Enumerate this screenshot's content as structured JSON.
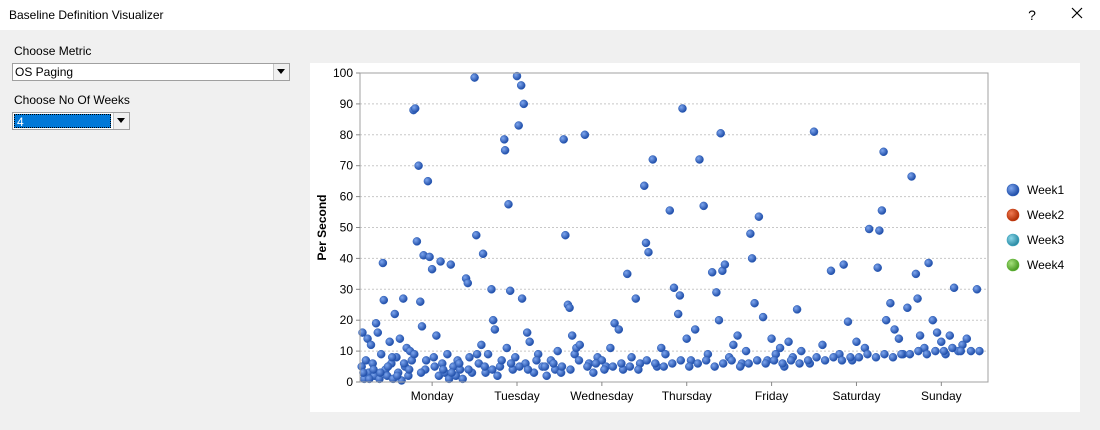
{
  "window": {
    "title": "Baseline Definition Visualizer",
    "help_glyph": "?",
    "close_glyph": "✕"
  },
  "form": {
    "metric_label": "Choose Metric",
    "metric_value": "OS Paging",
    "weeks_label": "Choose No Of Weeks",
    "weeks_value": "4"
  },
  "chart_data": {
    "type": "scatter",
    "ylabel": "Per Second",
    "ylim": [
      0,
      100
    ],
    "yticks": [
      0,
      10,
      20,
      30,
      40,
      50,
      60,
      70,
      80,
      90,
      100
    ],
    "x_unit": "day index (0 = start of Monday)",
    "xlim": [
      -0.85,
      6.55
    ],
    "xticks": [
      {
        "value": 0,
        "label": "Monday"
      },
      {
        "value": 1,
        "label": "Tuesday"
      },
      {
        "value": 2,
        "label": "Wednesday"
      },
      {
        "value": 3,
        "label": "Thursday"
      },
      {
        "value": 4,
        "label": "Friday"
      },
      {
        "value": 5,
        "label": "Saturday"
      },
      {
        "value": 6,
        "label": "Sunday"
      }
    ],
    "grid_y": true,
    "legend_position": "right",
    "series": [
      {
        "name": "Week1",
        "color": "#2e5fb8",
        "points": [
          [
            -0.83,
            5
          ],
          [
            -0.82,
            16
          ],
          [
            -0.8,
            1
          ],
          [
            -0.78,
            7
          ],
          [
            -0.76,
            14
          ],
          [
            -0.75,
            3
          ],
          [
            -0.72,
            12
          ],
          [
            -0.7,
            6
          ],
          [
            -0.68,
            2
          ],
          [
            -0.66,
            19
          ],
          [
            -0.64,
            16
          ],
          [
            -0.62,
            1
          ],
          [
            -0.6,
            9
          ],
          [
            -0.58,
            38.5
          ],
          [
            -0.57,
            26.5
          ],
          [
            -0.55,
            4
          ],
          [
            -0.53,
            2
          ],
          [
            -0.5,
            13
          ],
          [
            -0.48,
            6
          ],
          [
            -0.46,
            1
          ],
          [
            -0.44,
            22
          ],
          [
            -0.42,
            8
          ],
          [
            -0.4,
            3
          ],
          [
            -0.38,
            14
          ],
          [
            -0.36,
            0.5
          ],
          [
            -0.34,
            27
          ],
          [
            -0.32,
            5
          ],
          [
            -0.3,
            11
          ],
          [
            -0.28,
            2
          ],
          [
            -0.26,
            10
          ],
          [
            -0.24,
            7
          ],
          [
            -0.22,
            88
          ],
          [
            -0.2,
            88.5
          ],
          [
            -0.18,
            45.5
          ],
          [
            -0.16,
            70
          ],
          [
            -0.14,
            26
          ],
          [
            -0.12,
            18
          ],
          [
            -0.1,
            41
          ],
          [
            -0.08,
            4
          ],
          [
            -0.05,
            65
          ],
          [
            -0.03,
            40.5
          ],
          [
            0,
            36.5
          ],
          [
            0.02,
            8
          ],
          [
            0.05,
            15
          ],
          [
            0.08,
            2
          ],
          [
            0.1,
            39
          ],
          [
            0.12,
            6
          ],
          [
            0.15,
            3
          ],
          [
            0.18,
            9
          ],
          [
            0.2,
            1
          ],
          [
            0.22,
            38
          ],
          [
            0.25,
            5
          ],
          [
            0.28,
            2
          ],
          [
            0.3,
            7
          ],
          [
            0.33,
            4
          ],
          [
            0.36,
            1
          ],
          [
            0.4,
            33.5
          ],
          [
            0.42,
            32
          ],
          [
            0.44,
            8
          ],
          [
            0.47,
            3
          ],
          [
            0.5,
            98.5
          ],
          [
            0.52,
            47.5
          ],
          [
            0.55,
            6
          ],
          [
            0.58,
            12
          ],
          [
            0.6,
            41.5
          ],
          [
            0.63,
            3
          ],
          [
            0.66,
            9
          ],
          [
            0.7,
            30
          ],
          [
            0.72,
            20
          ],
          [
            0.74,
            17
          ],
          [
            0.77,
            2
          ],
          [
            0.8,
            5
          ],
          [
            0.85,
            78.5
          ],
          [
            0.86,
            75
          ],
          [
            0.88,
            11
          ],
          [
            0.9,
            57.5
          ],
          [
            0.92,
            29.5
          ],
          [
            0.95,
            4
          ],
          [
            0.98,
            8
          ],
          [
            1,
            99
          ],
          [
            1.02,
            83
          ],
          [
            1.05,
            96
          ],
          [
            1.08,
            90
          ],
          [
            1.06,
            27
          ],
          [
            1.1,
            6
          ],
          [
            1.12,
            16
          ],
          [
            1.15,
            13
          ],
          [
            1.2,
            3
          ],
          [
            1.25,
            9
          ],
          [
            1.3,
            5
          ],
          [
            1.35,
            2
          ],
          [
            1.4,
            7
          ],
          [
            1.45,
            4
          ],
          [
            1.48,
            10
          ],
          [
            1.52,
            3
          ],
          [
            1.55,
            78.5
          ],
          [
            1.57,
            47.5
          ],
          [
            1.6,
            25
          ],
          [
            1.62,
            24
          ],
          [
            1.65,
            15
          ],
          [
            1.68,
            9
          ],
          [
            1.7,
            11
          ],
          [
            1.74,
            12
          ],
          [
            1.8,
            80
          ],
          [
            1.85,
            6
          ],
          [
            1.9,
            3
          ],
          [
            1.95,
            8
          ],
          [
            2,
            7
          ],
          [
            2.05,
            5
          ],
          [
            2.1,
            11
          ],
          [
            2.15,
            19
          ],
          [
            2.2,
            17
          ],
          [
            2.25,
            4
          ],
          [
            2.3,
            35
          ],
          [
            2.35,
            8
          ],
          [
            2.4,
            27
          ],
          [
            2.45,
            6
          ],
          [
            2.5,
            63.5
          ],
          [
            2.52,
            45
          ],
          [
            2.55,
            42
          ],
          [
            2.6,
            72
          ],
          [
            2.65,
            5
          ],
          [
            2.7,
            11
          ],
          [
            2.75,
            9
          ],
          [
            2.8,
            55.5
          ],
          [
            2.85,
            30.5
          ],
          [
            2.9,
            22
          ],
          [
            2.92,
            28
          ],
          [
            2.95,
            88.5
          ],
          [
            3,
            14
          ],
          [
            3.05,
            7
          ],
          [
            3.1,
            17
          ],
          [
            3.15,
            72
          ],
          [
            3.2,
            57
          ],
          [
            3.25,
            9
          ],
          [
            3.3,
            35.5
          ],
          [
            3.35,
            29
          ],
          [
            3.38,
            20
          ],
          [
            3.4,
            80.5
          ],
          [
            3.42,
            36
          ],
          [
            3.45,
            38
          ],
          [
            3.5,
            8
          ],
          [
            3.55,
            12
          ],
          [
            3.6,
            15
          ],
          [
            3.65,
            6
          ],
          [
            3.7,
            10
          ],
          [
            3.75,
            48
          ],
          [
            3.77,
            40
          ],
          [
            3.8,
            25.5
          ],
          [
            3.85,
            53.5
          ],
          [
            3.9,
            21
          ],
          [
            3.95,
            7
          ],
          [
            4,
            14
          ],
          [
            4.05,
            9
          ],
          [
            4.1,
            11
          ],
          [
            4.15,
            5
          ],
          [
            4.2,
            13
          ],
          [
            4.25,
            8
          ],
          [
            4.3,
            23.5
          ],
          [
            4.35,
            10
          ],
          [
            4.45,
            6
          ],
          [
            4.5,
            81
          ],
          [
            4.6,
            12
          ],
          [
            4.7,
            36
          ],
          [
            4.8,
            9
          ],
          [
            4.85,
            38
          ],
          [
            4.9,
            19.5
          ],
          [
            4.95,
            7
          ],
          [
            5.0,
            13
          ],
          [
            5.1,
            11
          ],
          [
            5.15,
            49.5
          ],
          [
            5.25,
            37
          ],
          [
            5.27,
            49
          ],
          [
            5.3,
            55.5
          ],
          [
            5.32,
            74.5
          ],
          [
            5.35,
            20
          ],
          [
            5.4,
            25.5
          ],
          [
            5.45,
            17
          ],
          [
            5.5,
            14
          ],
          [
            5.55,
            9
          ],
          [
            5.6,
            24
          ],
          [
            5.65,
            66.5
          ],
          [
            5.7,
            35
          ],
          [
            5.72,
            27
          ],
          [
            5.75,
            15
          ],
          [
            5.8,
            11
          ],
          [
            5.85,
            38.5
          ],
          [
            5.9,
            20
          ],
          [
            5.95,
            16
          ],
          [
            6,
            13
          ],
          [
            6.05,
            9
          ],
          [
            6.1,
            15
          ],
          [
            6.15,
            30.5
          ],
          [
            6.2,
            10
          ],
          [
            6.25,
            12
          ],
          [
            -0.81,
            3
          ],
          [
            -0.74,
            1
          ],
          [
            -0.69,
            4
          ],
          [
            -0.61,
            3
          ],
          [
            -0.52,
            5
          ],
          [
            -0.47,
            8
          ],
          [
            -0.41,
            2
          ],
          [
            -0.33,
            6
          ],
          [
            -0.27,
            4
          ],
          [
            -0.21,
            9
          ],
          [
            -0.13,
            3
          ],
          [
            -0.07,
            7
          ],
          [
            0.03,
            5
          ],
          [
            0.13,
            4
          ],
          [
            0.23,
            3
          ],
          [
            0.32,
            6
          ],
          [
            0.43,
            4
          ],
          [
            0.53,
            9
          ],
          [
            0.62,
            5
          ],
          [
            0.71,
            4
          ],
          [
            0.82,
            7
          ],
          [
            0.93,
            6
          ],
          [
            1.03,
            5
          ],
          [
            1.13,
            4
          ],
          [
            1.23,
            7
          ],
          [
            1.33,
            5
          ],
          [
            1.43,
            6
          ],
          [
            1.53,
            5
          ],
          [
            1.63,
            4
          ],
          [
            1.73,
            7
          ],
          [
            1.83,
            5
          ],
          [
            1.93,
            6
          ],
          [
            2.03,
            4
          ],
          [
            2.13,
            5
          ],
          [
            2.23,
            6
          ],
          [
            2.33,
            5
          ],
          [
            2.43,
            4
          ],
          [
            2.53,
            7
          ],
          [
            2.63,
            6
          ],
          [
            2.73,
            5
          ],
          [
            2.83,
            6
          ],
          [
            2.93,
            7
          ],
          [
            3.03,
            5
          ],
          [
            3.13,
            6
          ],
          [
            3.23,
            7
          ],
          [
            3.33,
            5
          ],
          [
            3.43,
            6
          ],
          [
            3.53,
            7
          ],
          [
            3.63,
            5
          ],
          [
            3.73,
            6
          ],
          [
            3.83,
            7
          ],
          [
            3.93,
            6
          ],
          [
            4.03,
            7
          ],
          [
            4.13,
            6
          ],
          [
            4.23,
            7
          ],
          [
            4.33,
            6
          ],
          [
            4.43,
            7
          ],
          [
            4.53,
            8
          ],
          [
            4.63,
            7
          ],
          [
            4.73,
            8
          ],
          [
            4.83,
            7
          ],
          [
            4.93,
            8
          ],
          [
            5.03,
            8
          ],
          [
            5.13,
            9
          ],
          [
            5.23,
            8
          ],
          [
            5.33,
            9
          ],
          [
            5.43,
            8
          ],
          [
            5.53,
            9
          ],
          [
            5.63,
            9
          ],
          [
            5.73,
            10
          ],
          [
            5.83,
            9
          ],
          [
            5.93,
            10
          ],
          [
            6.03,
            10
          ],
          [
            6.13,
            11
          ],
          [
            6.23,
            10
          ],
          [
            6.3,
            14
          ],
          [
            6.35,
            10
          ],
          [
            6.42,
            30
          ],
          [
            6.45,
            10
          ]
        ]
      },
      {
        "name": "Week2",
        "color": "#c43a0f",
        "points": []
      },
      {
        "name": "Week3",
        "color": "#3fa6bf",
        "points": []
      },
      {
        "name": "Week4",
        "color": "#5fb436",
        "points": []
      }
    ]
  }
}
